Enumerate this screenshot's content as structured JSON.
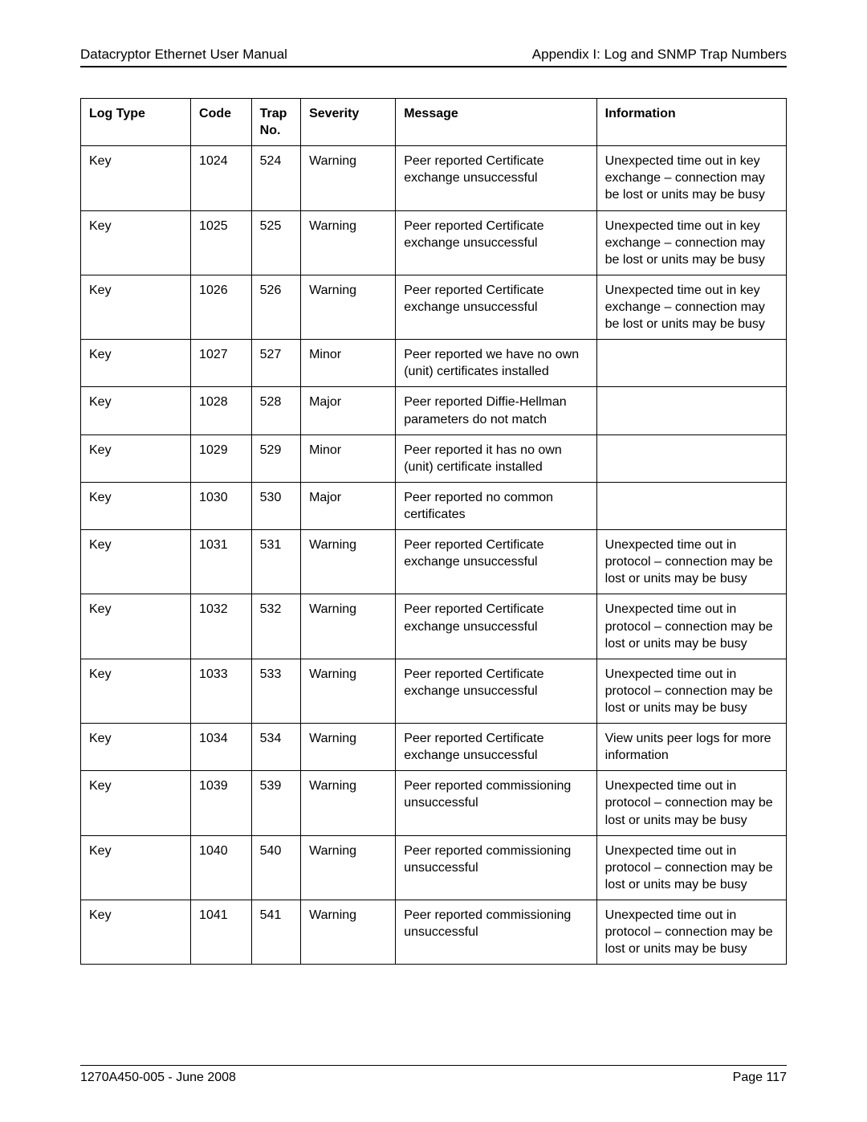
{
  "header": {
    "left": "Datacryptor Ethernet User Manual",
    "right": "Appendix I:  Log and SNMP Trap Numbers"
  },
  "table": {
    "columns": [
      "Log Type",
      "Code",
      "Trap No.",
      "Severity",
      "Message",
      "Information"
    ],
    "rows": [
      [
        "Key",
        "1024",
        "524",
        "Warning",
        "Peer reported Certificate exchange unsuccessful",
        "Unexpected time out in key exchange – connection may be lost or units may be busy"
      ],
      [
        "Key",
        "1025",
        "525",
        "Warning",
        "Peer reported Certificate exchange unsuccessful",
        "Unexpected time out in key exchange – connection may be lost or units may be busy"
      ],
      [
        "Key",
        "1026",
        "526",
        "Warning",
        "Peer reported Certificate exchange unsuccessful",
        "Unexpected time out in key exchange – connection may be lost or units may be busy"
      ],
      [
        "Key",
        "1027",
        "527",
        "Minor",
        "Peer reported we have no own (unit) certificates installed",
        ""
      ],
      [
        "Key",
        "1028",
        "528",
        "Major",
        "Peer reported Diffie-Hellman parameters do not match",
        ""
      ],
      [
        "Key",
        "1029",
        "529",
        "Minor",
        "Peer reported it has no own (unit) certificate installed",
        ""
      ],
      [
        "Key",
        "1030",
        "530",
        "Major",
        "Peer reported no common certificates",
        ""
      ],
      [
        "Key",
        "1031",
        "531",
        "Warning",
        "Peer reported Certificate exchange unsuccessful",
        "Unexpected time out in protocol – connection may be lost or units may be busy"
      ],
      [
        "Key",
        "1032",
        "532",
        "Warning",
        "Peer reported Certificate exchange unsuccessful",
        "Unexpected time out in protocol – connection may be lost or units may be busy"
      ],
      [
        "Key",
        "1033",
        "533",
        "Warning",
        "Peer reported Certificate exchange unsuccessful",
        "Unexpected time out in protocol – connection may be lost or units may be busy"
      ],
      [
        "Key",
        "1034",
        "534",
        "Warning",
        "Peer reported Certificate exchange unsuccessful",
        "View units peer logs for more information"
      ],
      [
        "Key",
        "1039",
        "539",
        "Warning",
        "Peer reported commissioning unsuccessful",
        "Unexpected time out in protocol – connection may be lost or units may be busy"
      ],
      [
        "Key",
        "1040",
        "540",
        "Warning",
        "Peer reported commissioning unsuccessful",
        "Unexpected time out in protocol – connection may be lost or units may be busy"
      ],
      [
        "Key",
        "1041",
        "541",
        "Warning",
        "Peer reported commissioning unsuccessful",
        "Unexpected time out in protocol – connection may be lost or units may be busy"
      ]
    ]
  },
  "footer": {
    "left": "1270A450-005  -  June 2008",
    "right": "Page 117"
  },
  "style": {
    "page_bg": "#ffffff",
    "text_color": "#000000",
    "border_color": "#000000",
    "font_family": "Lucida Sans",
    "header_fontsize": 17,
    "table_fontsize": 16,
    "footer_fontsize": 16
  }
}
